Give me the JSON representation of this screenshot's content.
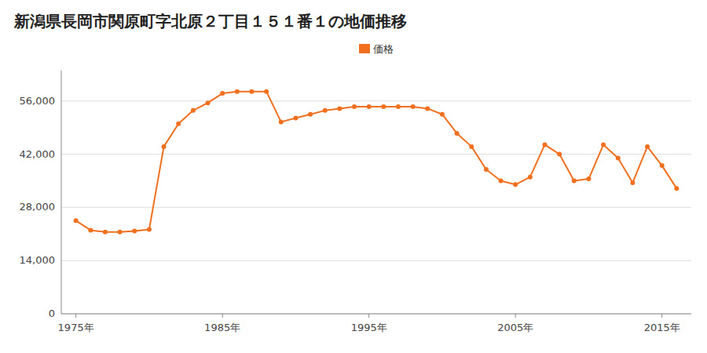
{
  "chart_data": {
    "type": "line",
    "title": "新潟県長岡市関原町字北原２丁目１５１番１の地価推移",
    "x": [
      1975,
      1976,
      1977,
      1978,
      1979,
      1980,
      1981,
      1982,
      1983,
      1984,
      1985,
      1986,
      1987,
      1988,
      1989,
      1990,
      1991,
      1992,
      1993,
      1994,
      1995,
      1996,
      1997,
      1998,
      1999,
      2000,
      2001,
      2002,
      2003,
      2004,
      2005,
      2006,
      2007,
      2008,
      2009,
      2010,
      2011,
      2012,
      2013,
      2014,
      2015,
      2016
    ],
    "series": [
      {
        "name": "価格",
        "color": "#f07020",
        "marker": "circle",
        "values": [
          24500,
          22000,
          21500,
          21500,
          21800,
          22200,
          44000,
          50000,
          53500,
          55500,
          58000,
          58500,
          58500,
          58500,
          50500,
          51500,
          52500,
          53500,
          54000,
          54500,
          54500,
          54500,
          54500,
          54500,
          54000,
          52500,
          47500,
          44000,
          38000,
          35000,
          34000,
          36000,
          44500,
          42000,
          35000,
          35500,
          44500,
          41000,
          34500,
          44000,
          39000,
          33000
        ]
      }
    ],
    "xlim": [
      1974,
      2017
    ],
    "xticks": [
      {
        "value": 1975,
        "label": "1975年"
      },
      {
        "value": 1985,
        "label": "1985年"
      },
      {
        "value": 1995,
        "label": "1995年"
      },
      {
        "value": 2005,
        "label": "2005年"
      },
      {
        "value": 2015,
        "label": "2015年"
      }
    ],
    "ylim": [
      0,
      64000
    ],
    "yticks": [
      0,
      {
        "value": 14000,
        "label": "14,000"
      },
      {
        "value": 28000,
        "label": "28,000"
      },
      {
        "value": 42000,
        "label": "42,000"
      },
      {
        "value": 56000,
        "label": "56,000"
      }
    ],
    "grid": true,
    "legend": "top"
  }
}
